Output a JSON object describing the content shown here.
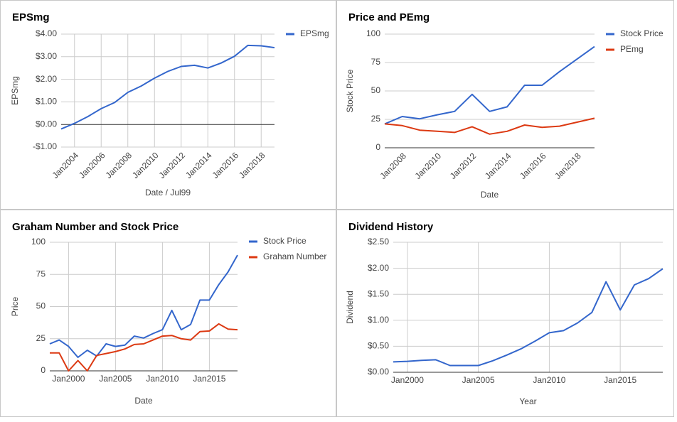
{
  "chart_data": [
    {
      "type": "line",
      "title": "EPSmg",
      "x_title": "Date / Jul99",
      "y_title": "EPSmg",
      "grid": "both",
      "x": [
        2003,
        2004,
        2005,
        2006,
        2007,
        2008,
        2009,
        2010,
        2011,
        2012,
        2013,
        2014,
        2015,
        2016,
        2017,
        2018,
        2019
      ],
      "xlim": [
        2003,
        2019
      ],
      "xticks": [
        {
          "value": 2004,
          "label": "Jan2004"
        },
        {
          "value": 2006,
          "label": "Jan2006"
        },
        {
          "value": 2008,
          "label": "Jan2008"
        },
        {
          "value": 2010,
          "label": "Jan2010"
        },
        {
          "value": 2012,
          "label": "Jan2012"
        },
        {
          "value": 2014,
          "label": "Jan2014"
        },
        {
          "value": 2016,
          "label": "Jan2016"
        },
        {
          "value": 2018,
          "label": "Jan2018"
        }
      ],
      "ylim": [
        -1,
        4
      ],
      "yticks": [
        {
          "value": 4,
          "label": "$4.00"
        },
        {
          "value": 3,
          "label": "$3.00"
        },
        {
          "value": 2,
          "label": "$2.00"
        },
        {
          "value": 1,
          "label": "$1.00"
        },
        {
          "value": 0,
          "label": "$0.00"
        },
        {
          "value": -1,
          "label": "-$1.00"
        }
      ],
      "series": [
        {
          "name": "EPSmg",
          "color": "#3366cc",
          "values": [
            -0.2,
            0.05,
            0.35,
            0.7,
            0.97,
            1.42,
            1.7,
            2.05,
            2.35,
            2.57,
            2.62,
            2.5,
            2.72,
            3.02,
            3.5,
            3.48,
            3.4
          ]
        }
      ]
    },
    {
      "type": "line",
      "title": "Price and PEmg",
      "x_title": "Date",
      "y_title": "Stock Price",
      "grid": "y",
      "x": [
        2007,
        2008,
        2009,
        2010,
        2011,
        2012,
        2013,
        2014,
        2015,
        2016,
        2017,
        2018,
        2019
      ],
      "xlim": [
        2007,
        2019
      ],
      "xticks": [
        {
          "value": 2008,
          "label": "Jan2008"
        },
        {
          "value": 2010,
          "label": "Jan2010"
        },
        {
          "value": 2012,
          "label": "Jan2012"
        },
        {
          "value": 2014,
          "label": "Jan2014"
        },
        {
          "value": 2016,
          "label": "Jan2016"
        },
        {
          "value": 2018,
          "label": "Jan2018"
        }
      ],
      "ylim": [
        0,
        100
      ],
      "yticks": [
        0,
        25,
        50,
        75,
        100
      ],
      "series": [
        {
          "name": "Stock Price",
          "color": "#3366cc",
          "values": [
            21,
            27.5,
            25.5,
            29,
            32,
            47,
            32,
            36,
            55,
            55,
            67,
            78,
            89
          ]
        },
        {
          "name": "PEmg",
          "color": "#dc3912",
          "values": [
            21,
            19.5,
            15.5,
            14.5,
            13.5,
            18.5,
            12,
            14.5,
            20,
            18,
            19,
            22.5,
            26
          ]
        }
      ]
    },
    {
      "type": "line",
      "title": "Graham Number and Stock Price",
      "x_title": "Date",
      "y_title": "Price",
      "grid": "both",
      "x": [
        1998,
        1999,
        2000,
        2001,
        2002,
        2003,
        2004,
        2005,
        2006,
        2007,
        2008,
        2009,
        2010,
        2011,
        2012,
        2013,
        2014,
        2015,
        2016,
        2017,
        2018
      ],
      "xlim": [
        1998,
        2018
      ],
      "xticks": [
        {
          "value": 2000,
          "label": "Jan2000"
        },
        {
          "value": 2005,
          "label": "Jan2005"
        },
        {
          "value": 2010,
          "label": "Jan2010"
        },
        {
          "value": 2015,
          "label": "Jan2015"
        }
      ],
      "ylim": [
        0,
        100
      ],
      "yticks": [
        0,
        25,
        50,
        75,
        100
      ],
      "series": [
        {
          "name": "Stock Price",
          "color": "#3366cc",
          "values": [
            21,
            24,
            19,
            10.5,
            16,
            11.5,
            21,
            19,
            20,
            27,
            25.5,
            29,
            32,
            47,
            32,
            36,
            55,
            55,
            67,
            77,
            90
          ]
        },
        {
          "name": "Graham Number",
          "color": "#dc3912",
          "values": [
            14,
            14,
            0,
            8,
            0,
            12,
            13.5,
            15,
            17,
            20.5,
            21,
            24,
            27,
            27.5,
            25,
            24,
            30.5,
            31,
            36.5,
            32.5,
            32
          ]
        }
      ]
    },
    {
      "type": "line",
      "title": "Dividend History",
      "x_title": "Year",
      "y_title": "Dividend",
      "grid": "both",
      "color": "#3366cc",
      "x": [
        1999,
        2000,
        2001,
        2002,
        2003,
        2004,
        2005,
        2006,
        2007,
        2008,
        2009,
        2010,
        2011,
        2012,
        2013,
        2014,
        2015,
        2016,
        2017,
        2018
      ],
      "xlim": [
        1999,
        2018
      ],
      "xticks": [
        {
          "value": 2000,
          "label": "Jan2000"
        },
        {
          "value": 2005,
          "label": "Jan2005"
        },
        {
          "value": 2010,
          "label": "Jan2010"
        },
        {
          "value": 2015,
          "label": "Jan2015"
        }
      ],
      "ylim": [
        0,
        2.5
      ],
      "yticks": [
        {
          "value": 0,
          "label": "$0.00"
        },
        {
          "value": 0.5,
          "label": "$0.50"
        },
        {
          "value": 1,
          "label": "$1.00"
        },
        {
          "value": 1.5,
          "label": "$1.50"
        },
        {
          "value": 2,
          "label": "$2.00"
        },
        {
          "value": 2.5,
          "label": "$2.50"
        }
      ],
      "values": [
        0.2,
        0.21,
        0.23,
        0.24,
        0.13,
        0.13,
        0.13,
        0.22,
        0.33,
        0.45,
        0.6,
        0.76,
        0.8,
        0.95,
        1.15,
        1.74,
        1.2,
        1.68,
        1.8,
        1.99
      ]
    }
  ]
}
